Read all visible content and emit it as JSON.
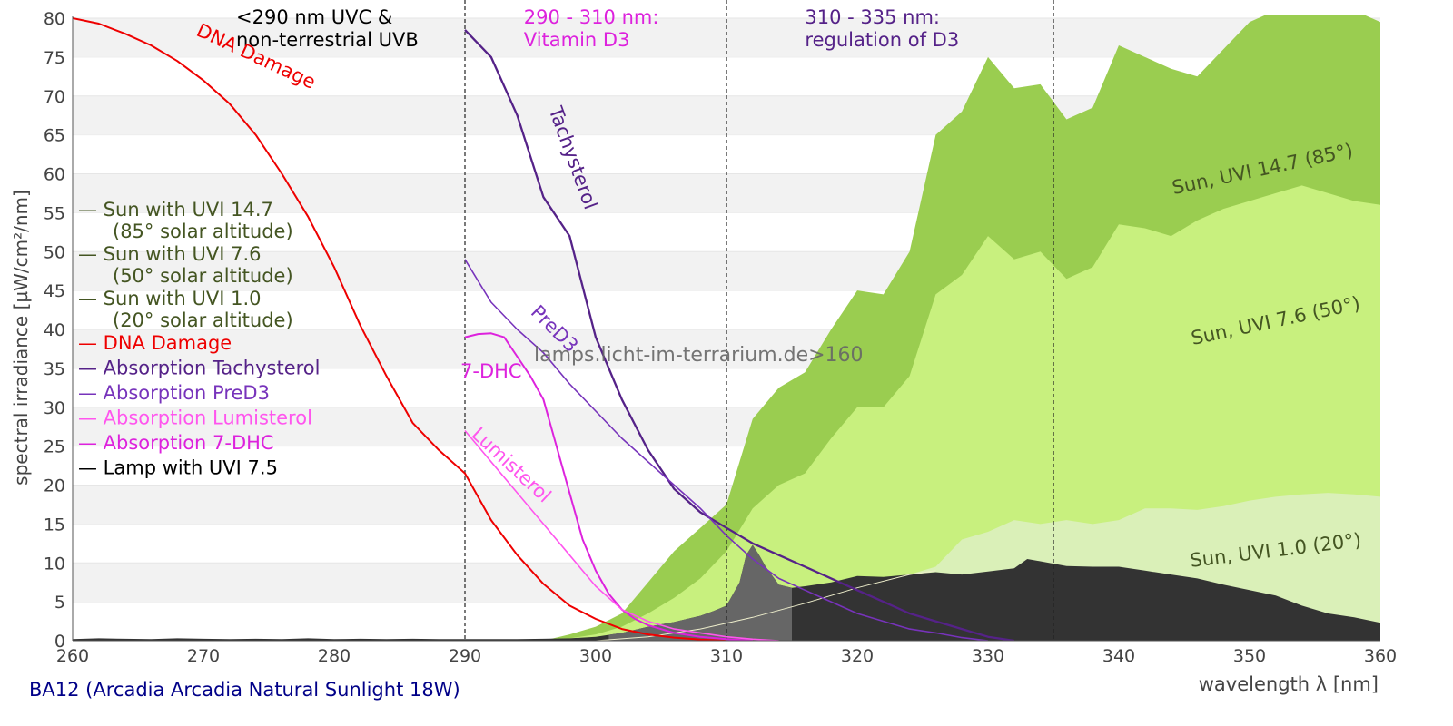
{
  "chart_data": {
    "type": "area",
    "ylabel": "spectral irradiance [µW/cm²/nm]",
    "xlabel": "wavelength λ [nm]",
    "caption": "BA12 (Arcadia Arcadia Natural Sunlight 18W)",
    "watermark": "lamps.licht-im-terrarium.de>160",
    "xlim": [
      260,
      360
    ],
    "ylim": [
      0,
      80
    ],
    "xticks": [
      260,
      270,
      280,
      290,
      300,
      310,
      320,
      330,
      340,
      350,
      360
    ],
    "yticks": [
      0,
      5,
      10,
      15,
      20,
      25,
      30,
      35,
      40,
      45,
      50,
      55,
      60,
      65,
      70,
      75,
      80
    ],
    "grid": "horizontal bands",
    "vlines": [
      290,
      310,
      335
    ],
    "regions": [
      {
        "x": 272.5,
        "lines": [
          "<290 nm UVC &",
          "non-terrestrial UVB"
        ],
        "color": "#000000"
      },
      {
        "x": 294.5,
        "lines": [
          "290 - 310 nm:",
          "Vitamin D3"
        ],
        "color": "#dd22dd"
      },
      {
        "x": 316,
        "lines": [
          "310 - 335 nm:",
          "regulation of D3"
        ],
        "color": "#552288"
      }
    ],
    "legend": {
      "position": "left",
      "entries": [
        {
          "text": "— Sun with UVI 14.7",
          "sub": "(85° solar altitude)",
          "color": "#445522"
        },
        {
          "text": "— Sun with UVI 7.6",
          "sub": "(50° solar altitude)",
          "color": "#445522"
        },
        {
          "text": "— Sun with UVI 1.0",
          "sub": "(20° solar altitude)",
          "color": "#445522"
        },
        {
          "text": "— DNA Damage",
          "color": "#ee0000"
        },
        {
          "text": "— Absorption Tachysterol",
          "color": "#552288"
        },
        {
          "text": "— Absorption PreD3",
          "color": "#7733bb"
        },
        {
          "text": "— Absorption Lumisterol",
          "color": "#ff55ee"
        },
        {
          "text": "— Absorption 7-DHC",
          "color": "#dd22dd"
        },
        {
          "text": "— Lamp with UVI 7.5",
          "color": "#000000"
        }
      ]
    },
    "series": [
      {
        "name": "Sun, UVI 14.7 (85°)",
        "kind": "area",
        "color": "#9acd50",
        "label_at": [
          351,
          60.5
        ],
        "label_angle": -12,
        "x": [
          296,
          298,
          300,
          302,
          304,
          306,
          308,
          310,
          312,
          314,
          316,
          318,
          320,
          322,
          324,
          326,
          328,
          330,
          332,
          334,
          336,
          338,
          340,
          342,
          344,
          346,
          348,
          350,
          352,
          354,
          356,
          358,
          360
        ],
        "y": [
          0,
          0.8,
          1.8,
          3.5,
          7.5,
          11.5,
          14.5,
          17.5,
          28.5,
          32.5,
          34.5,
          40,
          45,
          44.5,
          50,
          65,
          68,
          75,
          71,
          71.5,
          67,
          68.5,
          76.5,
          75,
          73.5,
          72.5,
          76,
          79.5,
          81,
          82.5,
          83,
          81,
          79.5
        ]
      },
      {
        "name": "Sun, UVI 7.6 (50°)",
        "kind": "area",
        "color": "#c8f07e",
        "label_at": [
          352,
          41
        ],
        "label_angle": -12,
        "x": [
          296,
          298,
          300,
          302,
          304,
          306,
          308,
          310,
          312,
          314,
          316,
          318,
          320,
          322,
          324,
          326,
          328,
          330,
          332,
          334,
          336,
          338,
          340,
          342,
          344,
          346,
          348,
          350,
          352,
          354,
          356,
          358,
          360
        ],
        "y": [
          0,
          0.3,
          0.8,
          1.8,
          3.5,
          5.5,
          8,
          11.5,
          17,
          20,
          21.5,
          26,
          30,
          30,
          34,
          44.5,
          47,
          52,
          49,
          50,
          46.5,
          48,
          53.5,
          53,
          52,
          54,
          55.5,
          56.5,
          57.5,
          58.5,
          57.5,
          56.5,
          56
        ]
      },
      {
        "name": "Sun, UVI 1.0 (20°)",
        "kind": "area",
        "color": "#daf0b8",
        "label_at": [
          352,
          11.5
        ],
        "label_angle": -7,
        "x": [
          302,
          306,
          310,
          314,
          318,
          322,
          326,
          328,
          330,
          332,
          334,
          336,
          338,
          340,
          342,
          344,
          346,
          348,
          350,
          352,
          354,
          356,
          358,
          360
        ],
        "y": [
          0,
          0.8,
          2,
          3.8,
          5.5,
          7.5,
          9.5,
          13,
          14,
          15.5,
          15,
          15.5,
          15,
          15.5,
          17,
          17,
          16.8,
          17.3,
          18,
          18.5,
          18.8,
          19,
          18.8,
          18.5
        ]
      },
      {
        "name": "Lamp with UVI 7.5",
        "kind": "area",
        "color": "#333333",
        "highlight_color": "#666666",
        "highlight_range": [
          301,
          315
        ],
        "x": [
          260,
          262,
          264,
          266,
          268,
          270,
          272,
          274,
          276,
          278,
          280,
          282,
          284,
          286,
          288,
          290,
          292,
          294,
          296,
          298,
          300,
          302,
          304,
          306,
          308,
          309,
          310,
          311,
          311.5,
          312,
          312.5,
          313,
          314,
          315,
          316,
          318,
          320,
          322,
          324,
          326,
          328,
          330,
          332,
          333,
          334,
          336,
          338,
          340,
          342,
          344,
          346,
          348,
          350,
          352,
          354,
          356,
          358,
          360
        ],
        "y": [
          0.2,
          0.3,
          0.25,
          0.2,
          0.3,
          0.25,
          0.2,
          0.25,
          0.2,
          0.3,
          0.2,
          0.25,
          0.2,
          0.25,
          0.2,
          0.2,
          0.2,
          0.2,
          0.25,
          0.3,
          0.5,
          1,
          1.8,
          2.4,
          3.2,
          3.8,
          4.5,
          7.5,
          11,
          12.3,
          11,
          9.5,
          7.2,
          6.8,
          7,
          7.5,
          8.3,
          8.2,
          8.5,
          8.8,
          8.5,
          8.9,
          9.3,
          10.5,
          10.2,
          9.6,
          9.5,
          9.5,
          9,
          8.5,
          8,
          7.2,
          6.5,
          5.8,
          4.5,
          3.5,
          3,
          2.3
        ]
      },
      {
        "name": "Lamp curve",
        "kind": "line",
        "color": "#eeeecc",
        "width": 1,
        "x": [
          300,
          304,
          308,
          312,
          316,
          320,
          324,
          326
        ],
        "y": [
          0,
          0.5,
          1.5,
          3,
          4.8,
          6.8,
          8.5,
          9
        ]
      },
      {
        "name": "DNA Damage",
        "kind": "line",
        "color": "#ee0000",
        "width": 2,
        "label_at": [
          274,
          75
        ],
        "label_angle": 25,
        "x": [
          260,
          262,
          264,
          266,
          268,
          270,
          272,
          274,
          276,
          278,
          280,
          282,
          284,
          286,
          288,
          290,
          292,
          294,
          296,
          298,
          300,
          302,
          304,
          306,
          308,
          310
        ],
        "y": [
          80,
          79.3,
          78,
          76.5,
          74.5,
          72,
          69,
          65,
          60,
          54.5,
          48,
          40.5,
          34,
          28,
          24.5,
          21.5,
          15.5,
          11,
          7.3,
          4.5,
          2.8,
          1.5,
          0.8,
          0.4,
          0.15,
          0
        ]
      },
      {
        "name": "Tachysterol",
        "kind": "line",
        "color": "#552288",
        "width": 2.3,
        "label_at": [
          298.2,
          62
        ],
        "label_angle": 70,
        "x": [
          290,
          292,
          294,
          296,
          298,
          300,
          302,
          304,
          306,
          308,
          310,
          312,
          314,
          316,
          318,
          320,
          322,
          324,
          326,
          328,
          330,
          332
        ],
        "y": [
          78.5,
          75,
          67.5,
          57,
          52,
          39,
          31,
          24.5,
          19.5,
          16.5,
          14.5,
          12.5,
          11,
          9.5,
          8,
          6.5,
          5,
          3.5,
          2.5,
          1.5,
          0.5,
          0
        ]
      },
      {
        "name": "PreD3",
        "kind": "line",
        "color": "#7733bb",
        "width": 1.6,
        "label_at": [
          296.8,
          40
        ],
        "label_angle": 45,
        "x": [
          290,
          292,
          294,
          296,
          298,
          300,
          302,
          304,
          306,
          308,
          310,
          312,
          314,
          316,
          318,
          320,
          322,
          324,
          326,
          328,
          330
        ],
        "y": [
          49,
          43.5,
          40,
          37,
          33,
          29.5,
          26,
          23,
          20,
          17,
          13.5,
          10.5,
          8,
          6.5,
          5,
          3.5,
          2.5,
          1.5,
          1,
          0.4,
          0
        ]
      },
      {
        "name": "7-DHC",
        "kind": "line",
        "color": "#dd22dd",
        "width": 2,
        "label_at": [
          292,
          34.5
        ],
        "label_angle": 0,
        "x": [
          290,
          291,
          292,
          293,
          294,
          295,
          296,
          297,
          298,
          299,
          300,
          301,
          302,
          303,
          304,
          306,
          308,
          310,
          312
        ],
        "y": [
          39,
          39.4,
          39.5,
          39,
          36.5,
          34,
          31,
          25,
          19,
          13,
          9,
          6,
          4,
          2.8,
          2,
          1,
          0.5,
          0.2,
          0
        ]
      },
      {
        "name": "Lumisterol",
        "kind": "line",
        "color": "#ff55ee",
        "width": 1.6,
        "label_at": [
          293.5,
          22.5
        ],
        "label_angle": 43,
        "x": [
          290,
          291,
          292,
          294,
          296,
          298,
          300,
          302,
          304,
          306,
          308,
          310,
          312,
          314
        ],
        "y": [
          27,
          25,
          23,
          19,
          15,
          11,
          7,
          4,
          2.5,
          1.5,
          1,
          0.5,
          0.2,
          0
        ]
      }
    ]
  }
}
